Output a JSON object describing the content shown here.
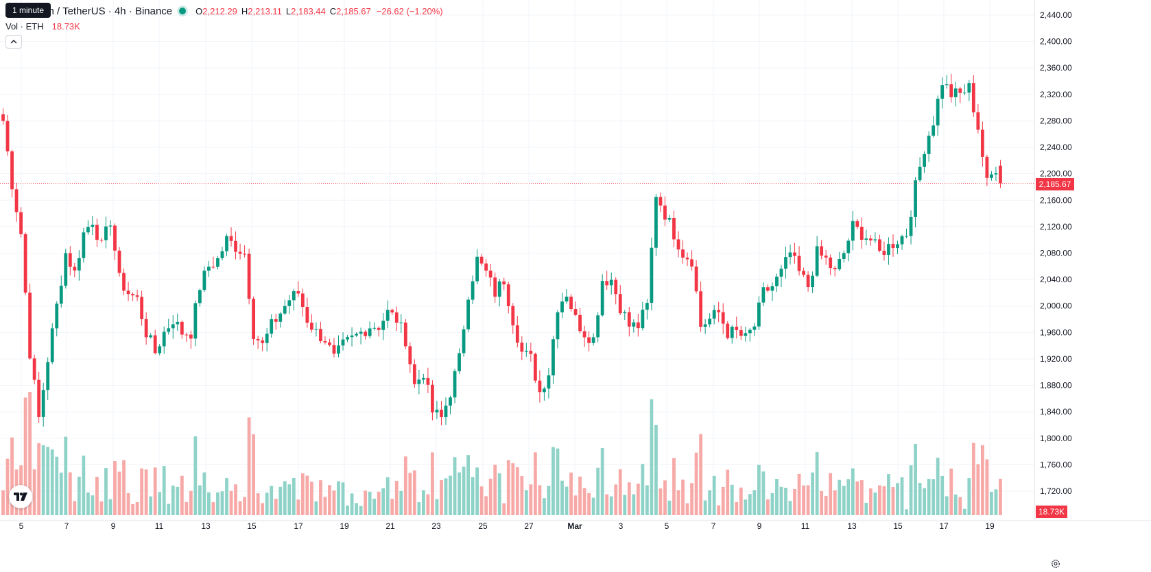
{
  "header": {
    "title": "Ethereum / TetherUS · 4h · Binance",
    "title_visible": "um / TetherUS · 4h · Binance",
    "tooltip": "1 minute",
    "collapse_symbol": "^"
  },
  "ohlc": {
    "o_label": "O",
    "o_value": "2,212.29",
    "h_label": "H",
    "h_value": "2,213.11",
    "l_label": "L",
    "l_value": "2,183.44",
    "c_label": "C",
    "c_value": "2,185.67",
    "change": "−26.62 (−1.20%)"
  },
  "volume_legend": {
    "label": "Vol · ETH",
    "value": "18.73K"
  },
  "price_axis": {
    "labels": [
      "2,440.00",
      "2,400.00",
      "2,360.00",
      "2,320.00",
      "2,280.00",
      "2,240.00",
      "2,200.00",
      "2,160.00",
      "2,120.00",
      "2,080.00",
      "2,040.00",
      "2,000.00",
      "1,960.00",
      "1,920.00",
      "1,880.00",
      "1,840.00",
      "1,800.00",
      "1,760.00",
      "1,720.00"
    ],
    "current_price": "2,185.67",
    "current_volume": "18.73K"
  },
  "time_axis": {
    "labels": [
      "5",
      "7",
      "9",
      "11",
      "13",
      "15",
      "17",
      "19",
      "21",
      "23",
      "25",
      "27",
      "Mar",
      "3",
      "5",
      "7",
      "9",
      "11",
      "13",
      "15",
      "17",
      "19"
    ]
  },
  "colors": {
    "up": "#089981",
    "down": "#f23645",
    "up_volume": "#8fd3c8",
    "down_volume": "#f7a9a7",
    "grid": "#f0f3fa"
  },
  "chart_data": {
    "type": "candlestick",
    "symbol": "ETHUSDT",
    "interval": "4h",
    "ylim": [
      1700,
      2440
    ],
    "y_ticks": [
      2440,
      2400,
      2360,
      2320,
      2280,
      2240,
      2200,
      2160,
      2120,
      2080,
      2040,
      2000,
      1960,
      1920,
      1880,
      1840,
      1800,
      1760,
      1720
    ],
    "anchors": [
      {
        "x": 0,
        "price": 2280
      },
      {
        "x": 2,
        "price": 2185
      },
      {
        "x": 4,
        "price": 2110
      },
      {
        "x": 6,
        "price": 1930
      },
      {
        "x": 8,
        "price": 1830
      },
      {
        "x": 10,
        "price": 1920
      },
      {
        "x": 12,
        "price": 2000
      },
      {
        "x": 14,
        "price": 2080
      },
      {
        "x": 16,
        "price": 2050
      },
      {
        "x": 18,
        "price": 2110
      },
      {
        "x": 20,
        "price": 2130
      },
      {
        "x": 22,
        "price": 2090
      },
      {
        "x": 24,
        "price": 2130
      },
      {
        "x": 26,
        "price": 2040
      },
      {
        "x": 28,
        "price": 2020
      },
      {
        "x": 30,
        "price": 2010
      },
      {
        "x": 32,
        "price": 1960
      },
      {
        "x": 34,
        "price": 1930
      },
      {
        "x": 36,
        "price": 1960
      },
      {
        "x": 38,
        "price": 1980
      },
      {
        "x": 40,
        "price": 1960
      },
      {
        "x": 42,
        "price": 1960
      },
      {
        "x": 44,
        "price": 2030
      },
      {
        "x": 46,
        "price": 2060
      },
      {
        "x": 48,
        "price": 2070
      },
      {
        "x": 50,
        "price": 2100
      },
      {
        "x": 52,
        "price": 2090
      },
      {
        "x": 54,
        "price": 2080
      },
      {
        "x": 56,
        "price": 1960
      },
      {
        "x": 58,
        "price": 1940
      },
      {
        "x": 60,
        "price": 1970
      },
      {
        "x": 62,
        "price": 1990
      },
      {
        "x": 64,
        "price": 2010
      },
      {
        "x": 66,
        "price": 2020
      },
      {
        "x": 68,
        "price": 1980
      },
      {
        "x": 70,
        "price": 1960
      },
      {
        "x": 72,
        "price": 1950
      },
      {
        "x": 74,
        "price": 1920
      },
      {
        "x": 76,
        "price": 1940
      },
      {
        "x": 78,
        "price": 1950
      },
      {
        "x": 80,
        "price": 1960
      },
      {
        "x": 82,
        "price": 1970
      },
      {
        "x": 84,
        "price": 1970
      },
      {
        "x": 86,
        "price": 1990
      },
      {
        "x": 88,
        "price": 1980
      },
      {
        "x": 90,
        "price": 1950
      },
      {
        "x": 92,
        "price": 1880
      },
      {
        "x": 94,
        "price": 1900
      },
      {
        "x": 96,
        "price": 1840
      },
      {
        "x": 98,
        "price": 1830
      },
      {
        "x": 100,
        "price": 1870
      },
      {
        "x": 102,
        "price": 1920
      },
      {
        "x": 104,
        "price": 2020
      },
      {
        "x": 106,
        "price": 2070
      },
      {
        "x": 108,
        "price": 2050
      },
      {
        "x": 110,
        "price": 2020
      },
      {
        "x": 112,
        "price": 2040
      },
      {
        "x": 114,
        "price": 1980
      },
      {
        "x": 116,
        "price": 1930
      },
      {
        "x": 118,
        "price": 1920
      },
      {
        "x": 120,
        "price": 1870
      },
      {
        "x": 122,
        "price": 1900
      },
      {
        "x": 124,
        "price": 2000
      },
      {
        "x": 126,
        "price": 2020
      },
      {
        "x": 128,
        "price": 1980
      },
      {
        "x": 130,
        "price": 1960
      },
      {
        "x": 132,
        "price": 1950
      },
      {
        "x": 134,
        "price": 2040
      },
      {
        "x": 136,
        "price": 2040
      },
      {
        "x": 138,
        "price": 2000
      },
      {
        "x": 140,
        "price": 1970
      },
      {
        "x": 142,
        "price": 1970
      },
      {
        "x": 144,
        "price": 2000
      },
      {
        "x": 146,
        "price": 2170
      },
      {
        "x": 148,
        "price": 2140
      },
      {
        "x": 150,
        "price": 2110
      },
      {
        "x": 152,
        "price": 2080
      },
      {
        "x": 154,
        "price": 2070
      },
      {
        "x": 156,
        "price": 1970
      },
      {
        "x": 158,
        "price": 1980
      },
      {
        "x": 160,
        "price": 1990
      },
      {
        "x": 162,
        "price": 1960
      },
      {
        "x": 164,
        "price": 1960
      },
      {
        "x": 166,
        "price": 1950
      },
      {
        "x": 168,
        "price": 1970
      },
      {
        "x": 170,
        "price": 2020
      },
      {
        "x": 172,
        "price": 2030
      },
      {
        "x": 174,
        "price": 2050
      },
      {
        "x": 176,
        "price": 2080
      },
      {
        "x": 178,
        "price": 2050
      },
      {
        "x": 180,
        "price": 2030
      },
      {
        "x": 182,
        "price": 2080
      },
      {
        "x": 184,
        "price": 2070
      },
      {
        "x": 186,
        "price": 2050
      },
      {
        "x": 188,
        "price": 2080
      },
      {
        "x": 190,
        "price": 2120
      },
      {
        "x": 192,
        "price": 2110
      },
      {
        "x": 194,
        "price": 2100
      },
      {
        "x": 196,
        "price": 2080
      },
      {
        "x": 198,
        "price": 2090
      },
      {
        "x": 200,
        "price": 2100
      },
      {
        "x": 202,
        "price": 2110
      },
      {
        "x": 204,
        "price": 2180
      },
      {
        "x": 206,
        "price": 2240
      },
      {
        "x": 208,
        "price": 2280
      },
      {
        "x": 210,
        "price": 2340
      },
      {
        "x": 212,
        "price": 2320
      },
      {
        "x": 214,
        "price": 2320
      },
      {
        "x": 216,
        "price": 2330
      },
      {
        "x": 218,
        "price": 2270
      },
      {
        "x": 220,
        "price": 2185
      },
      {
        "x": 222,
        "price": 2210
      },
      {
        "x": 223,
        "price": 2185.67
      }
    ]
  }
}
